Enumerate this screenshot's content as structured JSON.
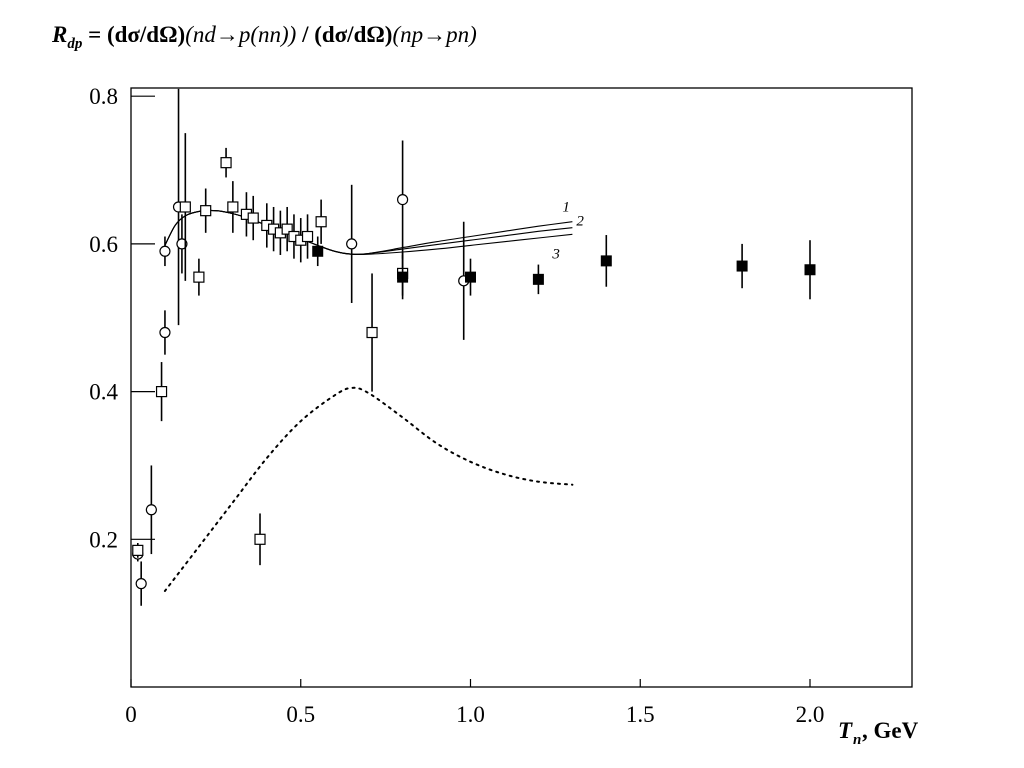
{
  "chart_data": {
    "type": "scatter",
    "title": {
      "lhs_main": "R",
      "lhs_sub": "dp",
      "eq": " = ",
      "num_bold": "(dσ/dΩ)",
      "num_proc": "(nd→p(nn))",
      "slash": " / ",
      "den_bold": "(dσ/dΩ)",
      "den_proc": "(np→pn)"
    },
    "xlabel": {
      "main": "T",
      "sub": "n",
      "unit": " , GeV"
    },
    "ylabel": "",
    "xlim": [
      0,
      2.3
    ],
    "ylim": [
      0,
      0.81
    ],
    "x_ticks": [
      {
        "value": 0,
        "label": "0"
      },
      {
        "value": 0.5,
        "label": "0.5"
      },
      {
        "value": 1.0,
        "label": "1.0"
      },
      {
        "value": 1.5,
        "label": "1.5"
      },
      {
        "value": 2.0,
        "label": "2.0"
      }
    ],
    "y_ticks": [
      {
        "value": 0.2,
        "label": "0.2"
      },
      {
        "value": 0.4,
        "label": "0.4"
      },
      {
        "value": 0.6,
        "label": "0.6"
      },
      {
        "value": 0.8,
        "label": "0.8"
      }
    ],
    "grid": false,
    "series": [
      {
        "marker": "circle-open",
        "points": [
          {
            "x": 0.02,
            "y": 0.18,
            "err": 0.01
          },
          {
            "x": 0.03,
            "y": 0.14,
            "err": 0.03
          },
          {
            "x": 0.06,
            "y": 0.24,
            "err": 0.06
          },
          {
            "x": 0.1,
            "y": 0.48,
            "err": 0.03
          },
          {
            "x": 0.1,
            "y": 0.59,
            "err": 0.02
          },
          {
            "x": 0.14,
            "y": 0.65,
            "err": 0.16
          },
          {
            "x": 0.15,
            "y": 0.6,
            "err": 0.04
          },
          {
            "x": 0.65,
            "y": 0.6,
            "err": 0.08
          },
          {
            "x": 0.8,
            "y": 0.66,
            "err": 0.08
          },
          {
            "x": 0.98,
            "y": 0.55,
            "err": 0.08
          }
        ]
      },
      {
        "marker": "square-open",
        "points": [
          {
            "x": 0.02,
            "y": 0.185,
            "err": 0.01
          },
          {
            "x": 0.09,
            "y": 0.4,
            "err": 0.04
          },
          {
            "x": 0.16,
            "y": 0.65,
            "err": 0.1
          },
          {
            "x": 0.2,
            "y": 0.555,
            "err": 0.025
          },
          {
            "x": 0.22,
            "y": 0.645,
            "err": 0.03
          },
          {
            "x": 0.28,
            "y": 0.71,
            "err": 0.02
          },
          {
            "x": 0.3,
            "y": 0.65,
            "err": 0.035
          },
          {
            "x": 0.34,
            "y": 0.64,
            "err": 0.03
          },
          {
            "x": 0.36,
            "y": 0.635,
            "err": 0.03
          },
          {
            "x": 0.38,
            "y": 0.2,
            "err": 0.035
          },
          {
            "x": 0.4,
            "y": 0.625,
            "err": 0.03
          },
          {
            "x": 0.42,
            "y": 0.62,
            "err": 0.03
          },
          {
            "x": 0.44,
            "y": 0.615,
            "err": 0.03
          },
          {
            "x": 0.46,
            "y": 0.62,
            "err": 0.03
          },
          {
            "x": 0.48,
            "y": 0.61,
            "err": 0.03
          },
          {
            "x": 0.5,
            "y": 0.605,
            "err": 0.03
          },
          {
            "x": 0.52,
            "y": 0.61,
            "err": 0.03
          },
          {
            "x": 0.56,
            "y": 0.63,
            "err": 0.03
          },
          {
            "x": 0.71,
            "y": 0.48,
            "err": 0.08
          },
          {
            "x": 0.8,
            "y": 0.56,
            "err": 0.03
          }
        ]
      },
      {
        "marker": "square-filled",
        "points": [
          {
            "x": 0.55,
            "y": 0.59,
            "err": 0.02
          },
          {
            "x": 0.8,
            "y": 0.555,
            "err": 0.03
          },
          {
            "x": 1.0,
            "y": 0.555,
            "err": 0.025
          },
          {
            "x": 1.2,
            "y": 0.552,
            "err": 0.02
          },
          {
            "x": 1.4,
            "y": 0.577,
            "err": 0.035
          },
          {
            "x": 1.8,
            "y": 0.57,
            "err": 0.03
          },
          {
            "x": 2.0,
            "y": 0.565,
            "err": 0.04
          }
        ]
      }
    ],
    "curves": [
      {
        "label": "1",
        "style": "solid",
        "x": [
          0.1,
          0.13,
          0.16,
          0.2,
          0.25,
          0.3,
          0.35,
          0.4,
          0.45,
          0.5,
          0.55,
          0.6,
          0.65,
          0.7,
          0.8,
          0.9,
          1.0,
          1.1,
          1.2,
          1.3
        ],
        "y": [
          0.598,
          0.625,
          0.638,
          0.644,
          0.645,
          0.641,
          0.634,
          0.625,
          0.616,
          0.607,
          0.598,
          0.59,
          0.586,
          0.587,
          0.595,
          0.603,
          0.61,
          0.617,
          0.624,
          0.63
        ]
      },
      {
        "label": "2",
        "style": "solid",
        "x": [
          0.1,
          0.13,
          0.16,
          0.2,
          0.25,
          0.3,
          0.35,
          0.4,
          0.45,
          0.5,
          0.55,
          0.6,
          0.65,
          0.7,
          0.8,
          0.9,
          1.0,
          1.1,
          1.2,
          1.3
        ],
        "y": [
          0.598,
          0.625,
          0.638,
          0.644,
          0.645,
          0.641,
          0.634,
          0.625,
          0.616,
          0.607,
          0.598,
          0.59,
          0.586,
          0.587,
          0.593,
          0.599,
          0.605,
          0.611,
          0.617,
          0.622
        ]
      },
      {
        "label": "3",
        "style": "solid",
        "x": [
          0.1,
          0.13,
          0.16,
          0.2,
          0.25,
          0.3,
          0.35,
          0.4,
          0.45,
          0.5,
          0.55,
          0.6,
          0.65,
          0.7,
          0.8,
          0.9,
          1.0,
          1.1,
          1.2,
          1.3
        ],
        "y": [
          0.598,
          0.625,
          0.638,
          0.644,
          0.645,
          0.641,
          0.634,
          0.625,
          0.616,
          0.607,
          0.598,
          0.59,
          0.586,
          0.586,
          0.589,
          0.593,
          0.598,
          0.603,
          0.608,
          0.613
        ]
      },
      {
        "label": "",
        "style": "dotted",
        "x": [
          0.1,
          0.2,
          0.3,
          0.4,
          0.5,
          0.6,
          0.65,
          0.7,
          0.8,
          0.9,
          1.0,
          1.1,
          1.2,
          1.3
        ],
        "y": [
          0.13,
          0.19,
          0.25,
          0.31,
          0.36,
          0.395,
          0.405,
          0.398,
          0.365,
          0.33,
          0.305,
          0.288,
          0.278,
          0.274
        ]
      }
    ]
  }
}
